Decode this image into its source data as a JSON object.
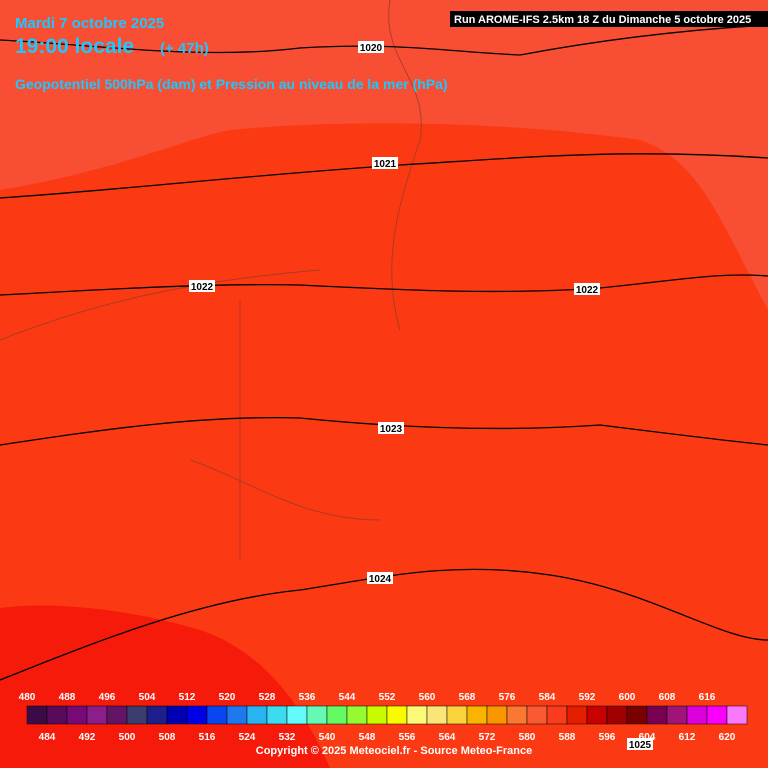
{
  "header": {
    "date": "Mardi 7 octobre 2025",
    "time": "19:00 locale",
    "lead": "(+ 47h)",
    "field": "Geopotentiel 500hPa (dam) et Pression au niveau de la mer (hPa)",
    "run": "Run AROME-IFS 2.5km 18 Z du Dimanche 5 octobre 2025"
  },
  "isobars": [
    {
      "label": "1020"
    },
    {
      "label": "1021"
    },
    {
      "label": "1022"
    },
    {
      "label": "1022"
    },
    {
      "label": "1023"
    },
    {
      "label": "1024"
    },
    {
      "label": "1025"
    }
  ],
  "colorbar": {
    "values": [
      480,
      484,
      488,
      492,
      496,
      500,
      504,
      508,
      512,
      516,
      520,
      524,
      528,
      532,
      536,
      540,
      544,
      548,
      552,
      556,
      560,
      564,
      568,
      572,
      576,
      580,
      584,
      588,
      592,
      596,
      600,
      604,
      608,
      612,
      616,
      620
    ],
    "colors": [
      "#3c0a46",
      "#5a0a5a",
      "#780a78",
      "#8c1e8c",
      "#641464",
      "#3c3c6e",
      "#1e1e8c",
      "#0000b4",
      "#0000e6",
      "#0a46f0",
      "#1e78f0",
      "#28b4f0",
      "#3cdcf0",
      "#64fafa",
      "#64fab4",
      "#64fa64",
      "#96fa32",
      "#c8fa00",
      "#fafa00",
      "#fafa78",
      "#fae678",
      "#fad23c",
      "#fab400",
      "#fa9600",
      "#fa7832",
      "#fa5a32",
      "#fa3c1e",
      "#e61e00",
      "#c80000",
      "#a00000",
      "#780000",
      "#780050",
      "#a0147a",
      "#dc00dc",
      "#fa00fa",
      "#fa78fa"
    ]
  },
  "footer": {
    "copyright": "Copyright © 2025 Meteociel.fr - Source Meteo-France"
  }
}
